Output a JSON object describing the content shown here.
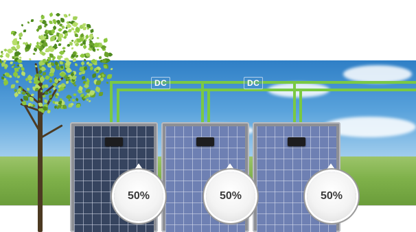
{
  "wires": {
    "label_left": "DC",
    "label_right": "DC",
    "color": "#7ac943"
  },
  "panels": [
    {
      "efficiency": "50%",
      "shade": "dark"
    },
    {
      "efficiency": "50%",
      "shade": "light"
    },
    {
      "efficiency": "50%",
      "shade": "light"
    }
  ],
  "colors": {
    "wire": "#7ac943",
    "trunk": "#4c3a22",
    "leaf": "#8cc63f"
  },
  "icons": {
    "tree": "tree-icon",
    "junction_box": "junction-box-icon"
  }
}
